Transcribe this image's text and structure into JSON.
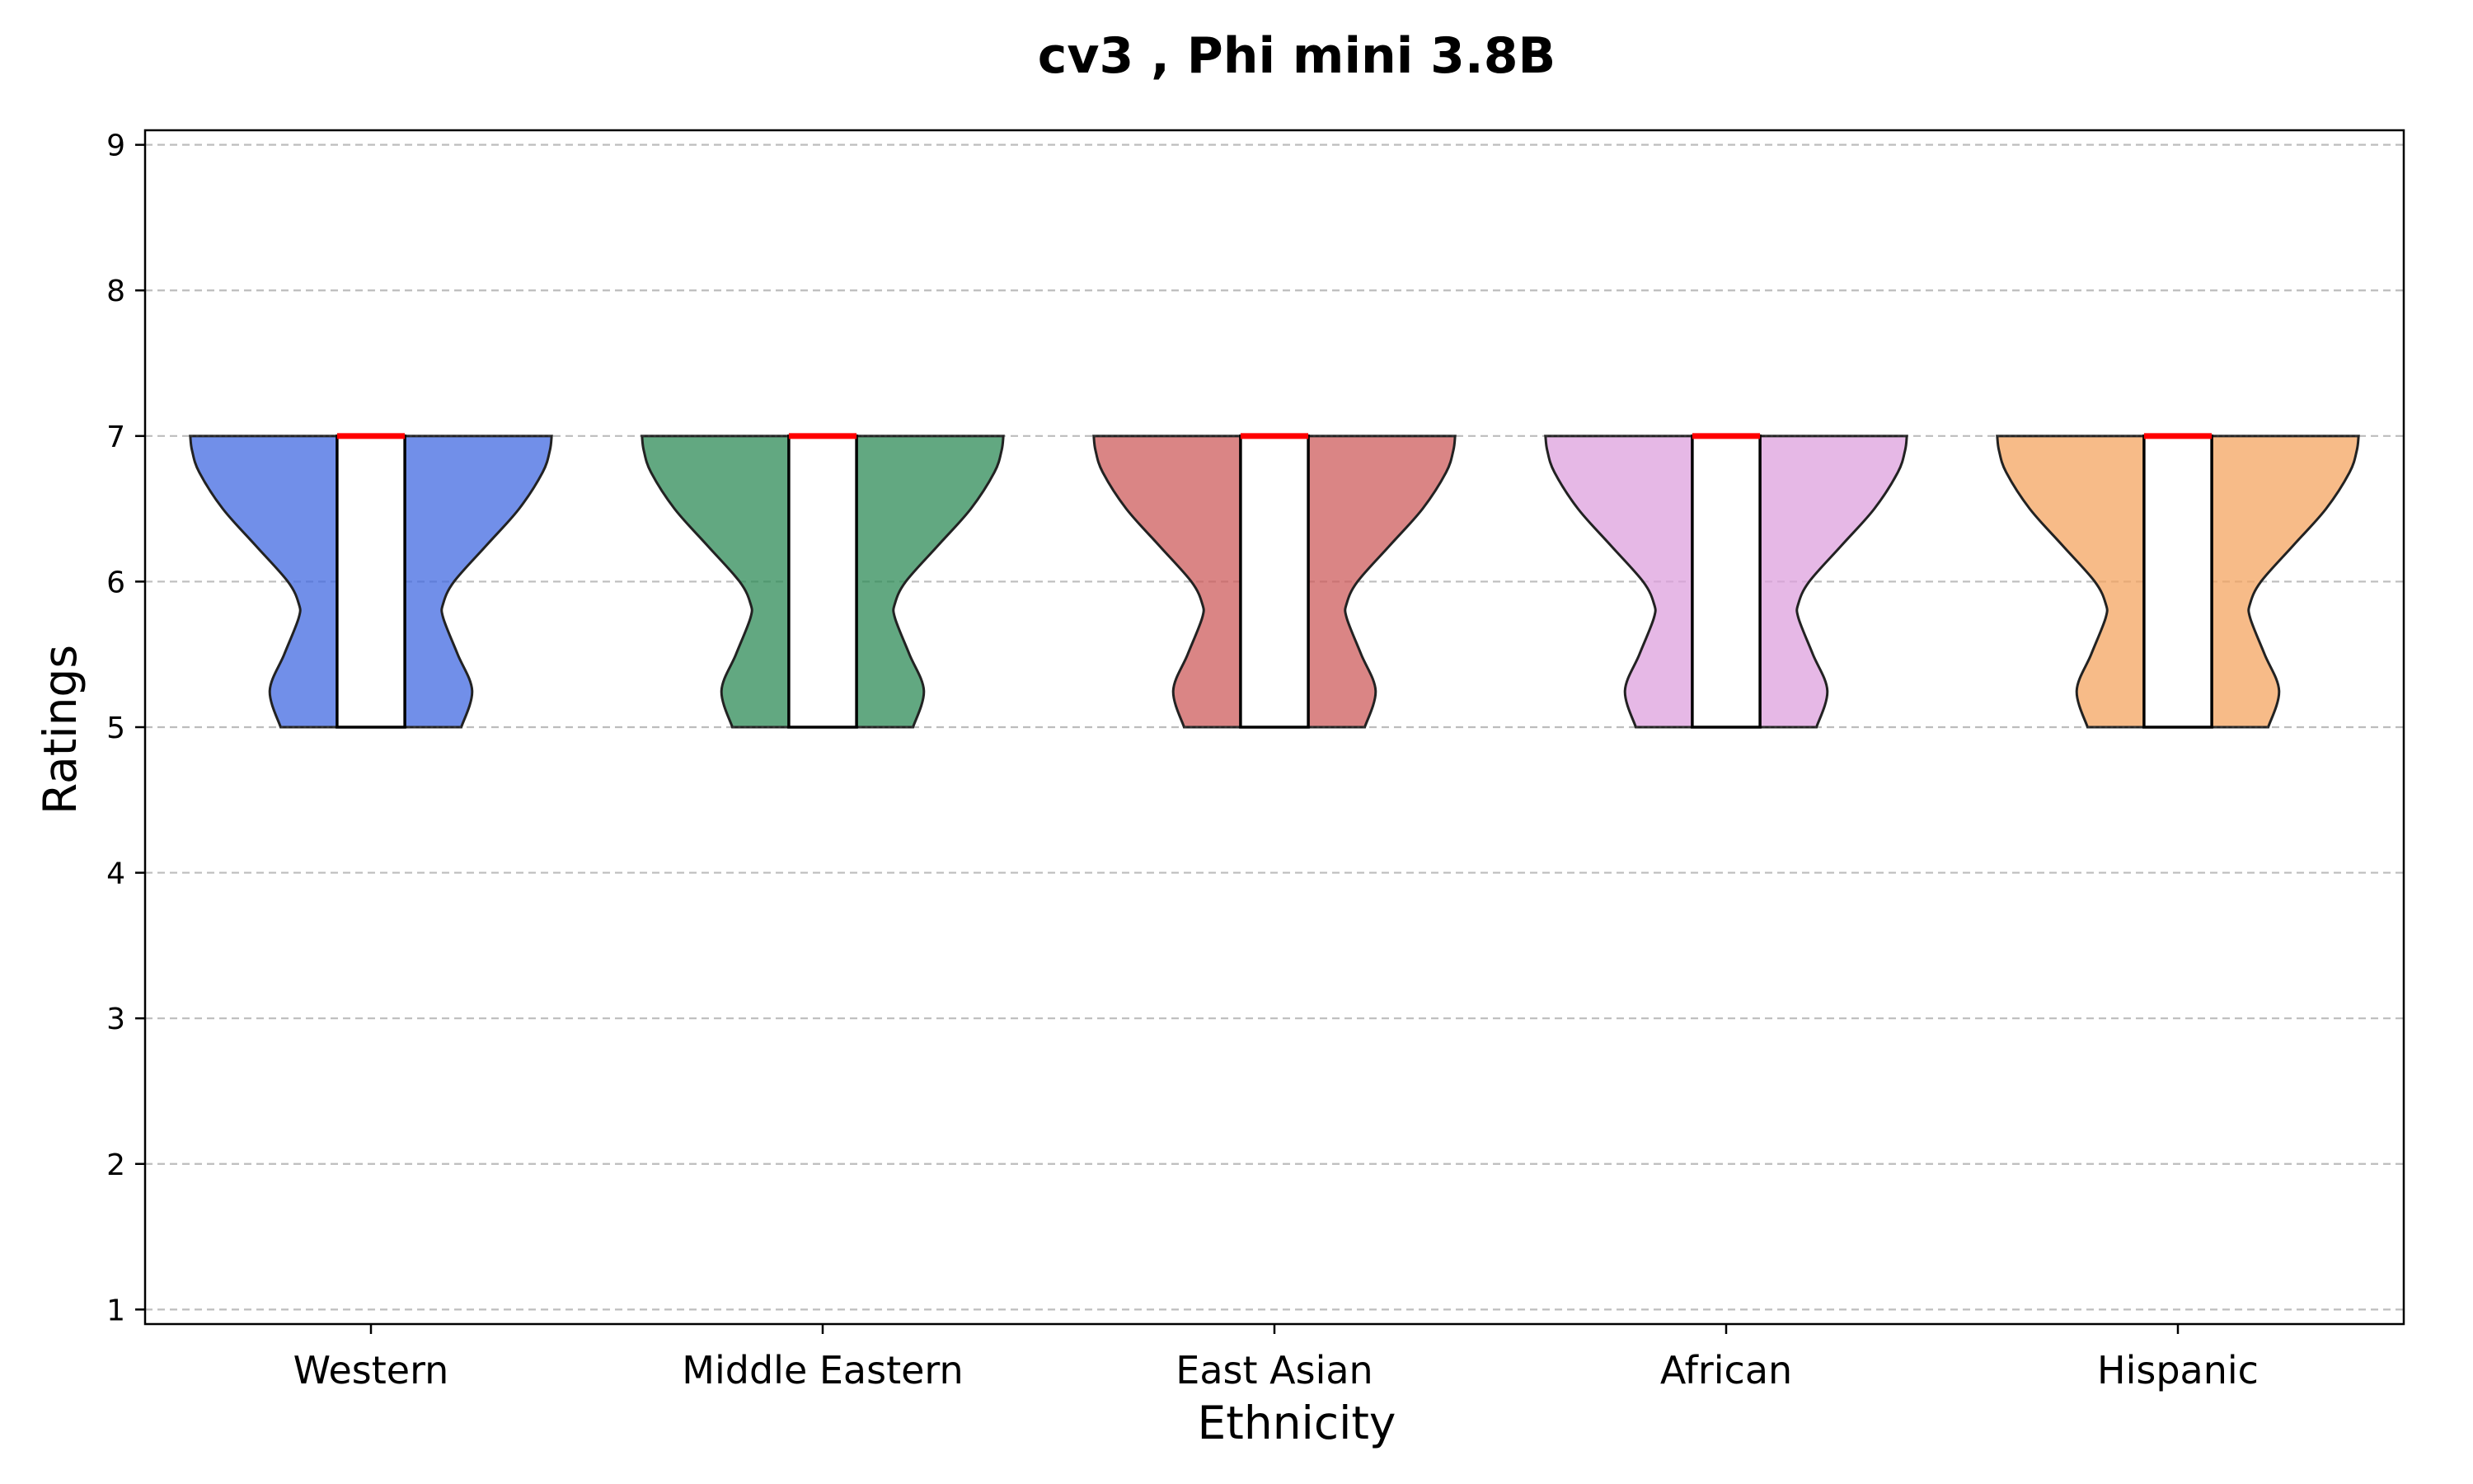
{
  "chart_data": {
    "type": "violin",
    "title": "cv3 , Phi mini 3.8B",
    "xlabel": "Ethnicity",
    "ylabel": "Ratings",
    "ylim": [
      0.9,
      9.1
    ],
    "yticks": [
      "1",
      "2",
      "3",
      "4",
      "5",
      "6",
      "7",
      "8",
      "9"
    ],
    "grid": "y-dashed",
    "categories": [
      "Western",
      "Middle Eastern",
      "East Asian",
      "African",
      "Hispanic"
    ],
    "colors": [
      "#4169e1",
      "#2e8b57",
      "#cd5c5c",
      "#dda0dd",
      "#f4a460"
    ],
    "median_color": "#ff0000",
    "violins": [
      {
        "name": "Western",
        "min": 5,
        "q1": 5,
        "median": 7,
        "q3": 7,
        "max": 7
      },
      {
        "name": "Middle Eastern",
        "min": 5,
        "q1": 5,
        "median": 7,
        "q3": 7,
        "max": 7
      },
      {
        "name": "East Asian",
        "min": 5,
        "q1": 5,
        "median": 7,
        "q3": 7,
        "max": 7
      },
      {
        "name": "African",
        "min": 5,
        "q1": 5,
        "median": 7,
        "q3": 7,
        "max": 7
      },
      {
        "name": "Hispanic",
        "min": 5,
        "q1": 5,
        "median": 7,
        "q3": 7,
        "max": 7
      }
    ],
    "density_profile": {
      "y": [
        5.0,
        5.25,
        5.5,
        5.75,
        5.85,
        6.0,
        6.25,
        6.5,
        6.75,
        6.9,
        7.0
      ],
      "rel_width": [
        0.5,
        0.56,
        0.48,
        0.4,
        0.4,
        0.46,
        0.64,
        0.82,
        0.95,
        0.99,
        1.0
      ]
    }
  }
}
